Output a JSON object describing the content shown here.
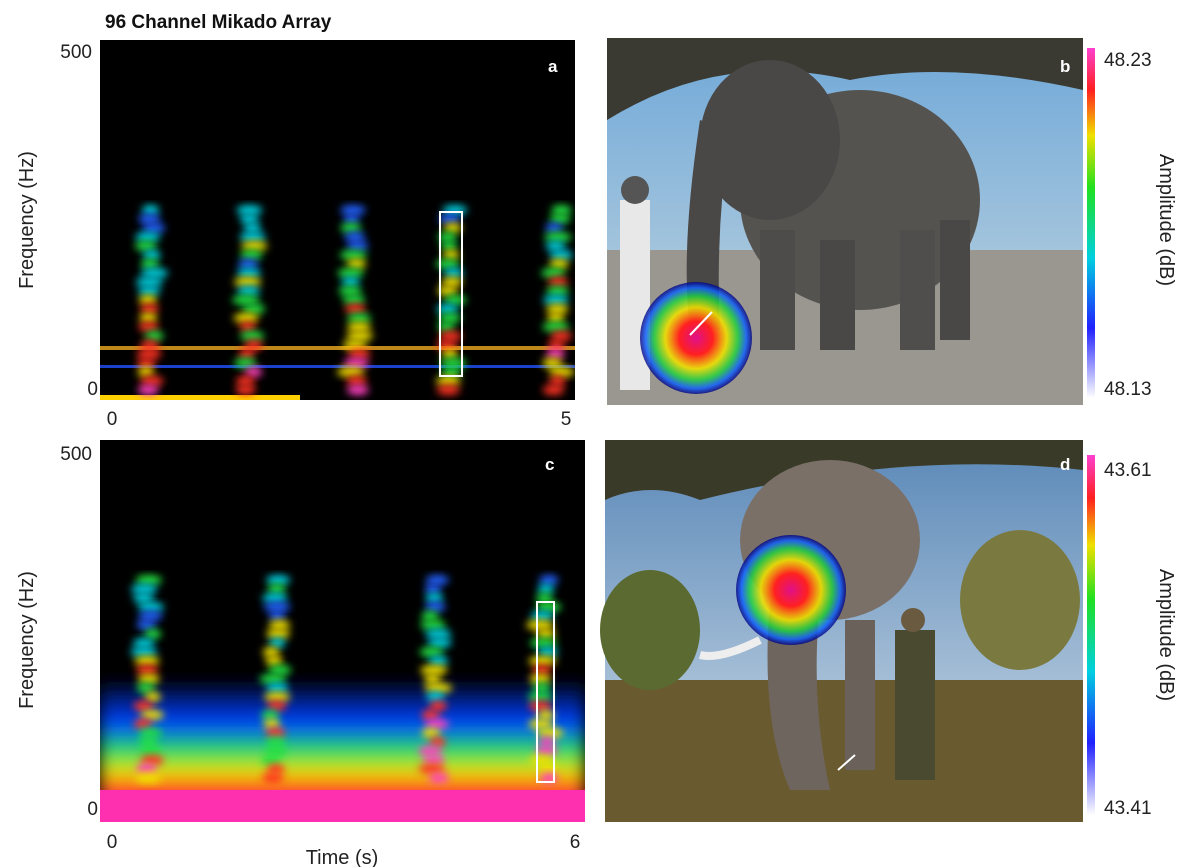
{
  "title": "96 Channel Mikado Array",
  "panels": [
    {
      "label": "a",
      "y_label": "Frequency (Hz)",
      "y_ticks": [
        "500",
        "0"
      ],
      "x_ticks": [
        "0",
        "5"
      ]
    },
    {
      "label": "b",
      "colorbar": {
        "max": "48.23",
        "min": "48.13",
        "label": "Amplitude (dB)"
      }
    },
    {
      "label": "c",
      "y_label": "Frequency (Hz)",
      "y_ticks": [
        "500",
        "0"
      ],
      "x_ticks": [
        "0",
        "6"
      ],
      "x_label": "Time (s)"
    },
    {
      "label": "d",
      "colorbar": {
        "max": "43.61",
        "min": "43.41",
        "label": "Amplitude (dB)"
      }
    }
  ]
}
